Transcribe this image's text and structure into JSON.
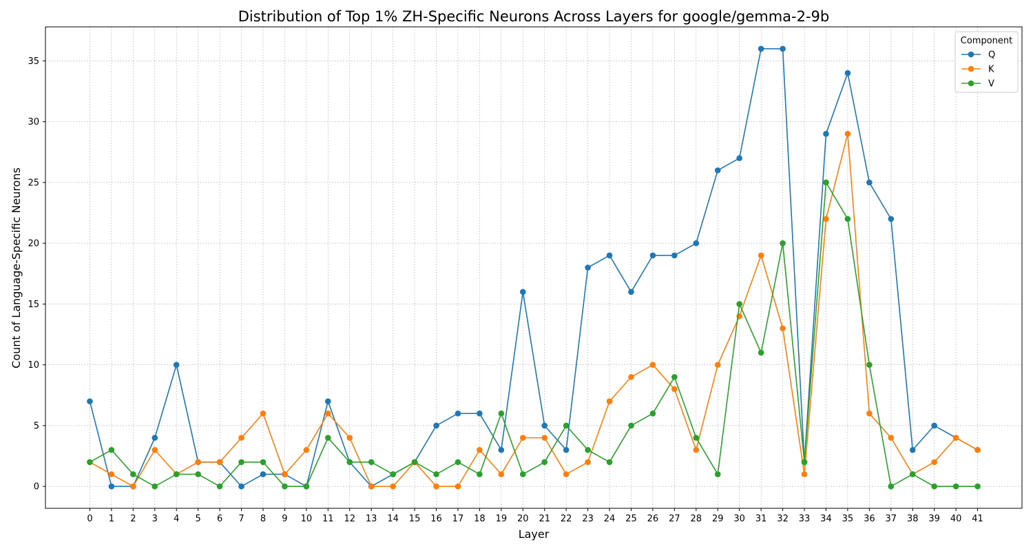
{
  "chart_data": {
    "type": "line",
    "title": "Distribution of Top 1% ZH-Specific Neurons Across Layers for google/gemma-2-9b",
    "xlabel": "Layer",
    "ylabel": "Count of Language-Specific Neurons",
    "x": [
      0,
      1,
      2,
      3,
      4,
      5,
      6,
      7,
      8,
      9,
      10,
      11,
      12,
      13,
      14,
      15,
      16,
      17,
      18,
      19,
      20,
      21,
      22,
      23,
      24,
      25,
      26,
      27,
      28,
      29,
      30,
      31,
      32,
      33,
      34,
      35,
      36,
      37,
      38,
      39,
      40,
      41
    ],
    "xticks": [
      "0",
      "1",
      "2",
      "3",
      "4",
      "5",
      "6",
      "7",
      "8",
      "9",
      "10",
      "11",
      "12",
      "13",
      "14",
      "15",
      "16",
      "17",
      "18",
      "19",
      "20",
      "21",
      "22",
      "23",
      "24",
      "25",
      "26",
      "27",
      "28",
      "29",
      "30",
      "31",
      "32",
      "33",
      "34",
      "35",
      "36",
      "37",
      "38",
      "39",
      "40",
      "41"
    ],
    "yticks": [
      0,
      5,
      10,
      15,
      20,
      25,
      30,
      35
    ],
    "xlim": [
      -2.05,
      43.05
    ],
    "ylim": [
      -1.8,
      37.8
    ],
    "grid": true,
    "legend": {
      "title": "Component",
      "placement": "top-right"
    },
    "series": [
      {
        "name": "Q",
        "color": "#1f77b4",
        "values": [
          7,
          0,
          0,
          4,
          10,
          2,
          2,
          0,
          1,
          1,
          0,
          7,
          2,
          0,
          1,
          2,
          5,
          6,
          6,
          3,
          16,
          5,
          3,
          18,
          19,
          16,
          19,
          19,
          20,
          26,
          27,
          36,
          36,
          2,
          29,
          34,
          25,
          22,
          3,
          5,
          4,
          3
        ]
      },
      {
        "name": "K",
        "color": "#ff7f0e",
        "values": [
          2,
          1,
          0,
          3,
          1,
          2,
          2,
          4,
          6,
          1,
          3,
          6,
          4,
          0,
          0,
          2,
          0,
          0,
          3,
          1,
          4,
          4,
          1,
          2,
          7,
          9,
          10,
          8,
          3,
          10,
          14,
          19,
          13,
          1,
          22,
          29,
          6,
          4,
          1,
          2,
          4,
          3
        ]
      },
      {
        "name": "V",
        "color": "#2ca02c",
        "values": [
          2,
          3,
          1,
          0,
          1,
          1,
          0,
          2,
          2,
          0,
          0,
          4,
          2,
          2,
          1,
          2,
          1,
          2,
          1,
          6,
          1,
          2,
          5,
          3,
          2,
          5,
          6,
          9,
          4,
          1,
          15,
          11,
          20,
          2,
          25,
          22,
          10,
          0,
          1,
          0,
          0,
          0
        ]
      }
    ]
  }
}
